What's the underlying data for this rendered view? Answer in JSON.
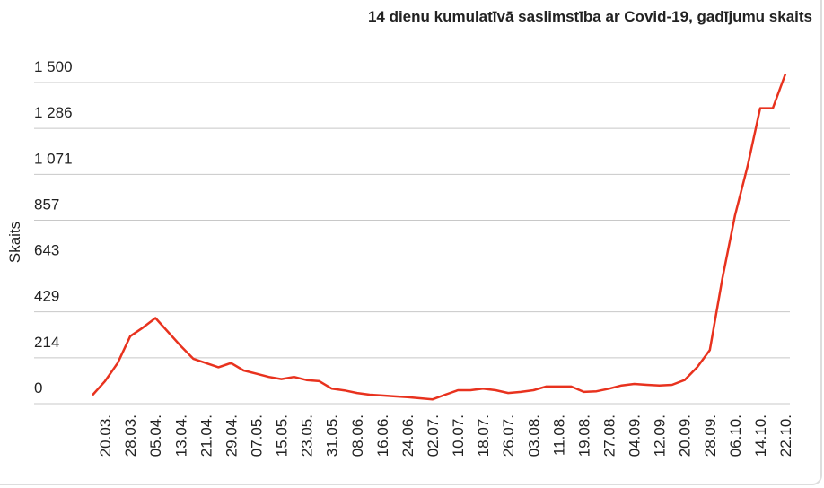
{
  "chart_data": {
    "type": "line",
    "title": "14 dienu kumulatīvā saslimstība ar Covid-19, gadījumu skaits",
    "y_label": "Skaits",
    "categories": [
      null,
      "20.03.",
      null,
      "28.03.",
      null,
      "05.04.",
      null,
      "13.04.",
      null,
      "21.04.",
      null,
      "29.04.",
      null,
      "07.05.",
      null,
      "15.05.",
      null,
      "23.05.",
      null,
      "31.05.",
      null,
      "08.06.",
      null,
      "16.06.",
      null,
      "24.06.",
      null,
      "02.07.",
      null,
      "10.07.",
      null,
      "18.07.",
      null,
      "26.07.",
      null,
      "03.08.",
      null,
      "11.08.",
      null,
      "19.08.",
      null,
      "27.08.",
      null,
      "04.09.",
      null,
      "12.09.",
      null,
      "20.09.",
      null,
      "28.09.",
      null,
      "06.10.",
      null,
      "14.10.",
      null,
      "22.10."
    ],
    "series": [
      {
        "name": "Skaits",
        "color": "#e8321e",
        "values": [
          40,
          105,
          190,
          315,
          355,
          400,
          335,
          270,
          210,
          190,
          170,
          190,
          155,
          140,
          125,
          115,
          125,
          110,
          105,
          70,
          62,
          50,
          42,
          38,
          34,
          30,
          25,
          20,
          42,
          63,
          63,
          70,
          63,
          50,
          55,
          63,
          80,
          80,
          80,
          55,
          58,
          70,
          85,
          92,
          88,
          85,
          88,
          110,
          170,
          250,
          585,
          880,
          1110,
          1380,
          1380,
          1540
        ]
      }
    ],
    "ylim": [
      0,
      1500
    ],
    "yticks": [
      0,
      214,
      429,
      643,
      857,
      {
        "value": 1071,
        "label": "1 071"
      },
      {
        "value": 1286,
        "label": "1 286"
      },
      {
        "value": 1500,
        "label": "1 500"
      }
    ],
    "grid": true
  }
}
